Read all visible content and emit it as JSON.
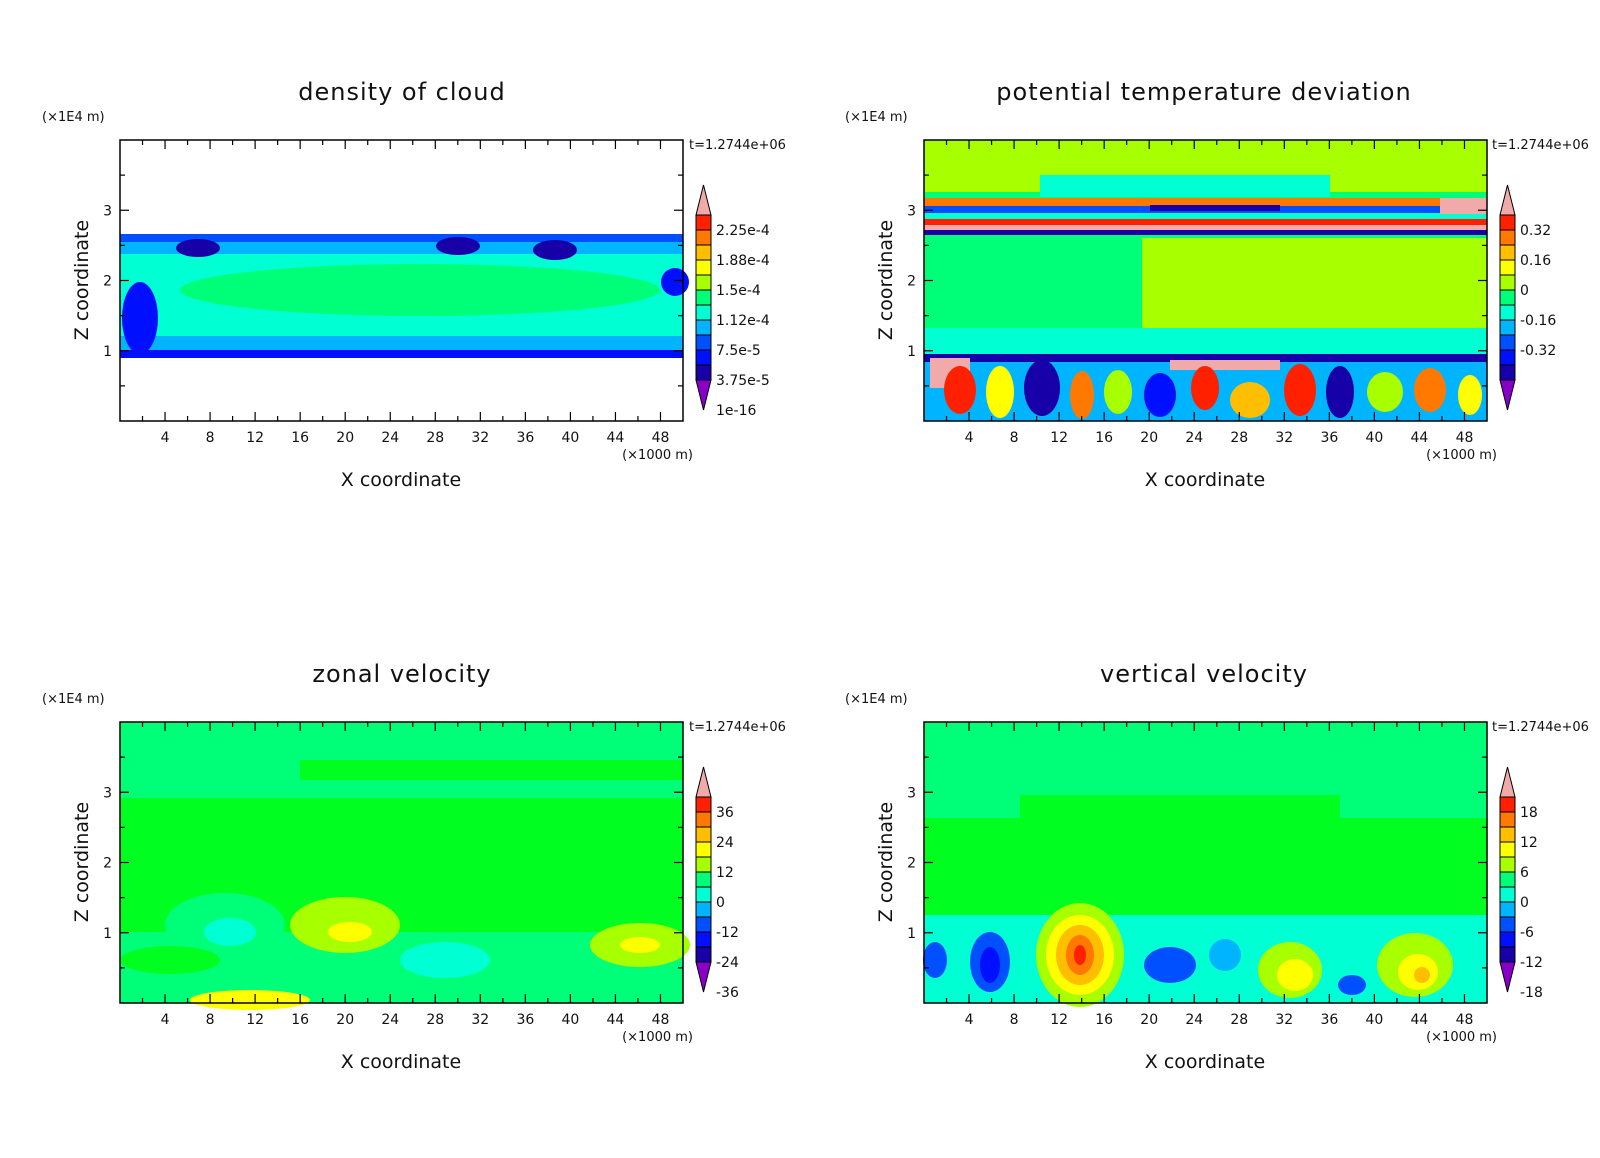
{
  "chart_data": [
    {
      "type": "heatmap",
      "title": "density of cloud",
      "xlabel": "X coordinate",
      "ylabel": "Z coordinate",
      "x_unit": "(×1000 m)",
      "y_unit": "(×1E4 m)",
      "time_label": "t=1.2744e+06",
      "xticks": [
        "4",
        "8",
        "12",
        "16",
        "20",
        "24",
        "28",
        "32",
        "36",
        "40",
        "44",
        "48"
      ],
      "yticks": [
        "1",
        "2",
        "3"
      ],
      "xlim": [
        0,
        50
      ],
      "ylim": [
        0,
        4
      ],
      "colorbar_labels": [
        "2.25e-4",
        "1.88e-4",
        "1.5e-4",
        "1.12e-4",
        "7.5e-5",
        "3.75e-5",
        "1e-16"
      ],
      "colorbar_colors": [
        "#f0aaaa",
        "#ff2000",
        "#ff7800",
        "#ffbe00",
        "#ffff00",
        "#a8ff00",
        "#00ff78",
        "#00ffd2",
        "#00b4ff",
        "#0050ff",
        "#0010ff",
        "#1800a8",
        "#8800c8"
      ]
    },
    {
      "type": "heatmap",
      "title": "potential temperature deviation",
      "xlabel": "X coordinate",
      "ylabel": "Z coordinate",
      "x_unit": "(×1000 m)",
      "y_unit": "(×1E4 m)",
      "time_label": "t=1.2744e+06",
      "xticks": [
        "4",
        "8",
        "12",
        "16",
        "20",
        "24",
        "28",
        "32",
        "36",
        "40",
        "44",
        "48"
      ],
      "yticks": [
        "1",
        "2",
        "3"
      ],
      "xlim": [
        0,
        50
      ],
      "ylim": [
        0,
        4
      ],
      "colorbar_labels": [
        "0.32",
        "0.16",
        "0",
        "-0.16",
        "-0.32"
      ],
      "colorbar_colors": [
        "#f0aaaa",
        "#ff2000",
        "#ff7800",
        "#ffbe00",
        "#ffff00",
        "#a8ff00",
        "#00ff78",
        "#00ffd2",
        "#00b4ff",
        "#0050ff",
        "#0010ff",
        "#1800a8",
        "#8800c8"
      ]
    },
    {
      "type": "heatmap",
      "title": "zonal velocity",
      "xlabel": "X coordinate",
      "ylabel": "Z coordinate",
      "x_unit": "(×1000 m)",
      "y_unit": "(×1E4 m)",
      "time_label": "t=1.2744e+06",
      "xticks": [
        "4",
        "8",
        "12",
        "16",
        "20",
        "24",
        "28",
        "32",
        "36",
        "40",
        "44",
        "48"
      ],
      "yticks": [
        "1",
        "2",
        "3"
      ],
      "xlim": [
        0,
        50
      ],
      "ylim": [
        0,
        4
      ],
      "colorbar_labels": [
        "36",
        "24",
        "12",
        "0",
        "-12",
        "-24",
        "-36"
      ],
      "colorbar_colors": [
        "#f0aaaa",
        "#ff2000",
        "#ff7800",
        "#ffbe00",
        "#ffff00",
        "#a8ff00",
        "#00ff78",
        "#00ffd2",
        "#00b4ff",
        "#0050ff",
        "#0010ff",
        "#1800a8",
        "#8800c8"
      ]
    },
    {
      "type": "heatmap",
      "title": "vertical velocity",
      "xlabel": "X coordinate",
      "ylabel": "Z coordinate",
      "x_unit": "(×1000 m)",
      "y_unit": "(×1E4 m)",
      "time_label": "t=1.2744e+06",
      "xticks": [
        "4",
        "8",
        "12",
        "16",
        "20",
        "24",
        "28",
        "32",
        "36",
        "40",
        "44",
        "48"
      ],
      "yticks": [
        "1",
        "2",
        "3"
      ],
      "xlim": [
        0,
        50
      ],
      "ylim": [
        0,
        4
      ],
      "colorbar_labels": [
        "18",
        "12",
        "6",
        "0",
        "-6",
        "-12",
        "-18"
      ],
      "colorbar_colors": [
        "#f0aaaa",
        "#ff2000",
        "#ff7800",
        "#ffbe00",
        "#ffff00",
        "#a8ff00",
        "#00ff78",
        "#00ffd2",
        "#00b4ff",
        "#0050ff",
        "#0010ff",
        "#1800a8",
        "#8800c8"
      ]
    }
  ]
}
